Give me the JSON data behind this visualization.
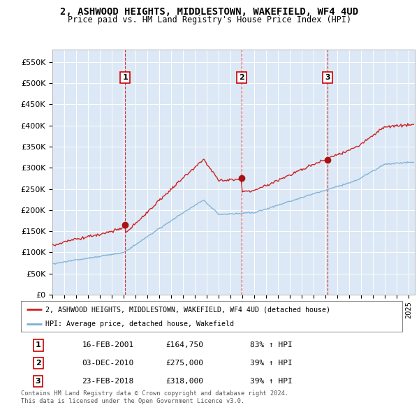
{
  "title": "2, ASHWOOD HEIGHTS, MIDDLESTOWN, WAKEFIELD, WF4 4UD",
  "subtitle": "Price paid vs. HM Land Registry's House Price Index (HPI)",
  "ylabel_ticks": [
    "£0",
    "£50K",
    "£100K",
    "£150K",
    "£200K",
    "£250K",
    "£300K",
    "£350K",
    "£400K",
    "£450K",
    "£500K",
    "£550K"
  ],
  "ytick_vals": [
    0,
    50000,
    100000,
    150000,
    200000,
    250000,
    300000,
    350000,
    400000,
    450000,
    500000,
    550000
  ],
  "xlim_start": 1995.0,
  "xlim_end": 2025.5,
  "ylim": [
    0,
    580000
  ],
  "sale_dates": [
    2001.12,
    2010.92,
    2018.15
  ],
  "sale_prices": [
    164750,
    275000,
    318000
  ],
  "sale_labels": [
    "1",
    "2",
    "3"
  ],
  "vline_color": "#cc0000",
  "hpi_line_color": "#7bafd4",
  "sale_line_color": "#cc2222",
  "chart_bg_color": "#dce8f5",
  "grid_color": "#ffffff",
  "legend_address": "2, ASHWOOD HEIGHTS, MIDDLESTOWN, WAKEFIELD, WF4 4UD (detached house)",
  "legend_hpi": "HPI: Average price, detached house, Wakefield",
  "table_rows": [
    [
      "1",
      "16-FEB-2001",
      "£164,750",
      "83% ↑ HPI"
    ],
    [
      "2",
      "03-DEC-2010",
      "£275,000",
      "39% ↑ HPI"
    ],
    [
      "3",
      "23-FEB-2018",
      "£318,000",
      "39% ↑ HPI"
    ]
  ],
  "footnote": "Contains HM Land Registry data © Crown copyright and database right 2024.\nThis data is licensed under the Open Government Licence v3.0.",
  "background_color": "#ffffff"
}
